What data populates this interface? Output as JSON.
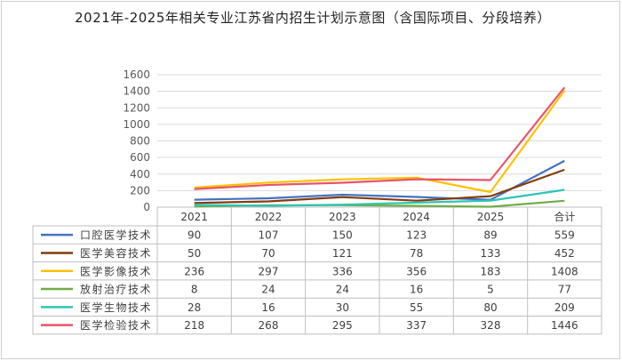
{
  "chart_data": {
    "type": "line",
    "title": "2021年-2025年相关专业江苏省内招生计划示意图（含国际项目、分段培养）",
    "categories": [
      "2021",
      "2022",
      "2023",
      "2024",
      "2025",
      "合计"
    ],
    "ylim": [
      0,
      1600
    ],
    "yticks": [
      0,
      200,
      400,
      600,
      800,
      1000,
      1200,
      1400,
      1600
    ],
    "grid": true,
    "legend": "data-table",
    "series": [
      {
        "name": "口腔医学技术",
        "color": "#4472C4",
        "values": [
          90,
          107,
          150,
          123,
          89,
          559
        ]
      },
      {
        "name": "医学美容技术",
        "color": "#843C0C",
        "values": [
          50,
          70,
          121,
          78,
          133,
          452
        ]
      },
      {
        "name": "医学影像技术",
        "color": "#FFC000",
        "values": [
          236,
          297,
          336,
          356,
          183,
          1408
        ]
      },
      {
        "name": "放射治疗技术",
        "color": "#70AD47",
        "values": [
          8,
          24,
          24,
          16,
          5,
          77
        ]
      },
      {
        "name": "医学生物技术",
        "color": "#2EC4B6",
        "values": [
          28,
          16,
          30,
          55,
          80,
          209
        ]
      },
      {
        "name": "医学检验技术",
        "color": "#E8546A",
        "values": [
          218,
          268,
          295,
          337,
          328,
          1446
        ]
      }
    ]
  }
}
